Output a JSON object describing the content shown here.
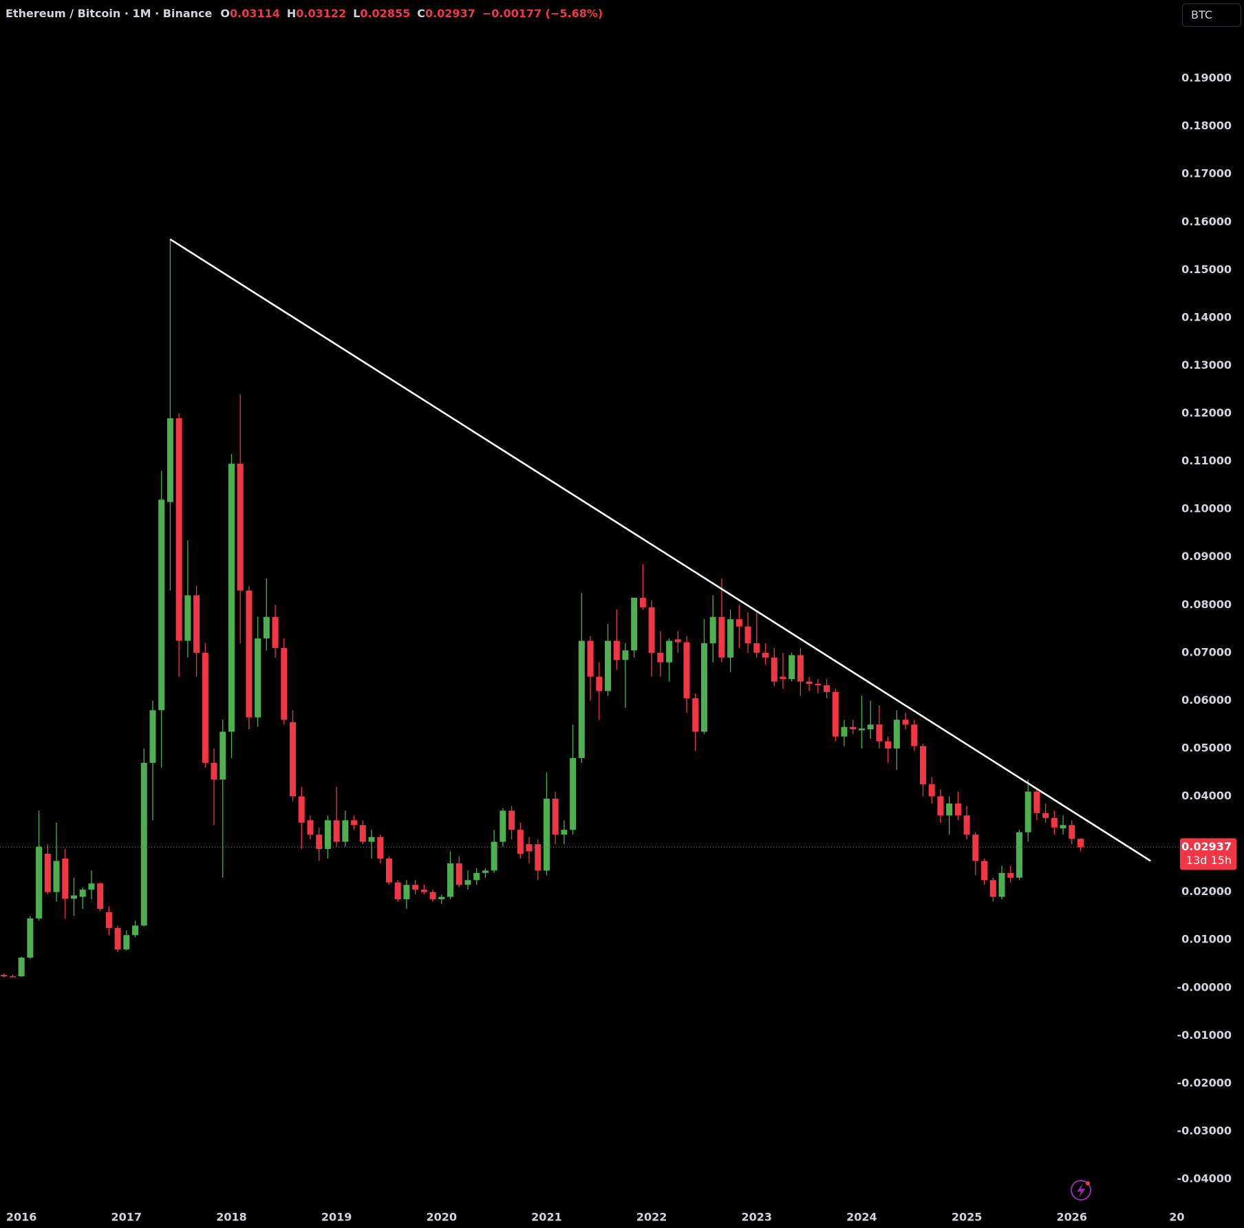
{
  "chart_data": {
    "type": "candlestick",
    "title": "Ethereum / Bitcoin · 1M · Binance",
    "ohlc_labels": [
      "O",
      "H",
      "L",
      "C"
    ],
    "change_label": "−0.00177 (−5.68%)",
    "currency": "BTC",
    "countdown": "13d 15h",
    "up_color": "#4caf50",
    "down_color": "#f23645",
    "trendline_color": "#ffffff",
    "grid": false,
    "x": [
      2015.8333,
      2015.9167,
      2016.0,
      2016.0833,
      2016.1667,
      2016.25,
      2016.3333,
      2016.4167,
      2016.5,
      2016.5833,
      2016.6667,
      2016.75,
      2016.8333,
      2016.9167,
      2017.0,
      2017.0833,
      2017.1667,
      2017.25,
      2017.3333,
      2017.4167,
      2017.5,
      2017.5833,
      2017.6667,
      2017.75,
      2017.8333,
      2017.9167,
      2018.0,
      2018.0833,
      2018.1667,
      2018.25,
      2018.3333,
      2018.4167,
      2018.5,
      2018.5833,
      2018.6667,
      2018.75,
      2018.8333,
      2018.9167,
      2019.0,
      2019.0833,
      2019.1667,
      2019.25,
      2019.3333,
      2019.4167,
      2019.5,
      2019.5833,
      2019.6667,
      2019.75,
      2019.8333,
      2019.9167,
      2020.0,
      2020.0833,
      2020.1667,
      2020.25,
      2020.3333,
      2020.4167,
      2020.5,
      2020.5833,
      2020.6667,
      2020.75,
      2020.8333,
      2020.9167,
      2021.0,
      2021.0833,
      2021.1667,
      2021.25,
      2021.3333,
      2021.4167,
      2021.5,
      2021.5833,
      2021.6667,
      2021.75,
      2021.8333,
      2021.9167,
      2022.0,
      2022.0833,
      2022.1667,
      2022.25,
      2022.3333,
      2022.4167,
      2022.5,
      2022.5833,
      2022.6667,
      2022.75,
      2022.8333,
      2022.9167,
      2023.0,
      2023.0833,
      2023.1667,
      2023.25,
      2023.3333,
      2023.4167,
      2023.5,
      2023.5833,
      2023.6667,
      2023.75,
      2023.8333,
      2023.9167,
      2024.0,
      2024.0833,
      2024.1667,
      2024.25,
      2024.3333,
      2024.4167,
      2024.5,
      2024.5833,
      2024.6667,
      2024.75,
      2024.8333,
      2024.9167,
      2025.0,
      2025.0833,
      2025.1667,
      2025.25,
      2025.3333,
      2025.4167,
      2025.5,
      2025.5833,
      2025.6667,
      2025.75,
      2025.8333,
      2025.9167,
      2026.0,
      2026.0833
    ],
    "open": [
      0.0027,
      0.0024,
      0.0024,
      0.0063,
      0.0145,
      0.028,
      0.02,
      0.027,
      0.0186,
      0.019,
      0.0205,
      0.0218,
      0.0158,
      0.0125,
      0.008,
      0.011,
      0.013,
      0.047,
      0.058,
      0.1015,
      0.119,
      0.0725,
      0.082,
      0.07,
      0.047,
      0.0435,
      0.0535,
      0.1095,
      0.083,
      0.0565,
      0.073,
      0.0775,
      0.071,
      0.0555,
      0.04,
      0.035,
      0.032,
      0.029,
      0.035,
      0.0305,
      0.035,
      0.034,
      0.0305,
      0.0315,
      0.027,
      0.022,
      0.0185,
      0.0215,
      0.0205,
      0.02,
      0.0185,
      0.019,
      0.026,
      0.0215,
      0.0225,
      0.024,
      0.0245,
      0.0305,
      0.037,
      0.033,
      0.03,
      0.03,
      0.0245,
      0.0395,
      0.032,
      0.033,
      0.048,
      0.0725,
      0.065,
      0.062,
      0.0725,
      0.0685,
      0.0705,
      0.0815,
      0.0795,
      0.07,
      0.068,
      0.0728,
      0.0722,
      0.0605,
      0.0535,
      0.072,
      0.0775,
      0.069,
      0.077,
      0.0755,
      0.072,
      0.07,
      0.069,
      0.065,
      0.0645,
      0.0695,
      0.064,
      0.0635,
      0.0632,
      0.0618,
      0.0525,
      0.0545,
      0.0538,
      0.054,
      0.055,
      0.0515,
      0.05,
      0.056,
      0.055,
      0.0505,
      0.0425,
      0.04,
      0.036,
      0.0385,
      0.036,
      0.032,
      0.0265,
      0.0225,
      0.019,
      0.024,
      0.023,
      0.0325,
      0.041,
      0.0365,
      0.0355,
      0.0333,
      0.034,
      0.03114
    ],
    "high": [
      0.003,
      0.0027,
      0.0065,
      0.015,
      0.037,
      0.03,
      0.0345,
      0.029,
      0.023,
      0.021,
      0.0245,
      0.022,
      0.017,
      0.013,
      0.012,
      0.014,
      0.05,
      0.06,
      0.108,
      0.1565,
      0.12,
      0.0935,
      0.084,
      0.072,
      0.05,
      0.056,
      0.1115,
      0.124,
      0.084,
      0.0775,
      0.0855,
      0.08,
      0.073,
      0.058,
      0.042,
      0.036,
      0.0335,
      0.036,
      0.042,
      0.037,
      0.036,
      0.035,
      0.033,
      0.032,
      0.0275,
      0.0225,
      0.0225,
      0.0225,
      0.0215,
      0.0205,
      0.0195,
      0.0285,
      0.0275,
      0.0245,
      0.025,
      0.025,
      0.033,
      0.0375,
      0.038,
      0.0345,
      0.0315,
      0.031,
      0.045,
      0.041,
      0.035,
      0.055,
      0.0825,
      0.0735,
      0.068,
      0.076,
      0.079,
      0.072,
      0.0815,
      0.0885,
      0.081,
      0.0745,
      0.073,
      0.0745,
      0.0735,
      0.0615,
      0.077,
      0.082,
      0.0855,
      0.079,
      0.08,
      0.0785,
      0.0785,
      0.072,
      0.071,
      0.07,
      0.07,
      0.071,
      0.065,
      0.0645,
      0.0645,
      0.0625,
      0.056,
      0.056,
      0.061,
      0.06,
      0.059,
      0.0525,
      0.058,
      0.0575,
      0.056,
      0.051,
      0.044,
      0.0415,
      0.04,
      0.041,
      0.038,
      0.0325,
      0.027,
      0.023,
      0.0255,
      0.0255,
      0.033,
      0.0435,
      0.0415,
      0.0385,
      0.037,
      0.036,
      0.035,
      0.03122
    ],
    "low": [
      0.0022,
      0.0022,
      0.0023,
      0.006,
      0.014,
      0.0195,
      0.018,
      0.0145,
      0.015,
      0.0165,
      0.0185,
      0.016,
      0.011,
      0.0075,
      0.0078,
      0.0105,
      0.0128,
      0.035,
      0.046,
      0.083,
      0.065,
      0.069,
      0.065,
      0.046,
      0.034,
      0.023,
      0.048,
      0.072,
      0.054,
      0.0545,
      0.0705,
      0.069,
      0.055,
      0.039,
      0.029,
      0.031,
      0.0265,
      0.027,
      0.0295,
      0.0295,
      0.033,
      0.03,
      0.027,
      0.026,
      0.0215,
      0.018,
      0.0165,
      0.0195,
      0.0195,
      0.018,
      0.0175,
      0.0185,
      0.021,
      0.0205,
      0.0215,
      0.023,
      0.024,
      0.0295,
      0.031,
      0.027,
      0.026,
      0.0225,
      0.0235,
      0.03,
      0.03,
      0.032,
      0.047,
      0.06,
      0.056,
      0.061,
      0.0665,
      0.0585,
      0.069,
      0.079,
      0.065,
      0.065,
      0.064,
      0.07,
      0.0575,
      0.0495,
      0.053,
      0.068,
      0.068,
      0.066,
      0.071,
      0.07,
      0.069,
      0.0675,
      0.063,
      0.0625,
      0.064,
      0.061,
      0.062,
      0.0615,
      0.0605,
      0.0515,
      0.0505,
      0.053,
      0.05,
      0.052,
      0.05,
      0.047,
      0.0455,
      0.054,
      0.0495,
      0.04,
      0.0385,
      0.0345,
      0.032,
      0.035,
      0.031,
      0.0235,
      0.0215,
      0.018,
      0.0185,
      0.022,
      0.0225,
      0.0305,
      0.035,
      0.0345,
      0.032,
      0.032,
      0.03,
      0.02855
    ],
    "close": [
      0.0024,
      0.0024,
      0.0063,
      0.0145,
      0.0295,
      0.02,
      0.0265,
      0.0186,
      0.0193,
      0.0205,
      0.0218,
      0.0165,
      0.0125,
      0.008,
      0.011,
      0.013,
      0.047,
      0.058,
      0.102,
      0.119,
      0.0725,
      0.082,
      0.07,
      0.047,
      0.0435,
      0.0535,
      0.1095,
      0.083,
      0.0565,
      0.073,
      0.0775,
      0.071,
      0.056,
      0.04,
      0.0345,
      0.032,
      0.029,
      0.035,
      0.0305,
      0.035,
      0.034,
      0.0305,
      0.0315,
      0.027,
      0.022,
      0.0185,
      0.0215,
      0.0205,
      0.02,
      0.0185,
      0.019,
      0.026,
      0.0215,
      0.0225,
      0.024,
      0.0245,
      0.0305,
      0.037,
      0.033,
      0.028,
      0.0285,
      0.0245,
      0.0395,
      0.032,
      0.033,
      0.048,
      0.0725,
      0.065,
      0.062,
      0.0725,
      0.0685,
      0.0705,
      0.0815,
      0.0795,
      0.07,
      0.068,
      0.0725,
      0.0722,
      0.0605,
      0.0535,
      0.072,
      0.0775,
      0.069,
      0.077,
      0.0755,
      0.072,
      0.07,
      0.069,
      0.064,
      0.0645,
      0.0695,
      0.064,
      0.0635,
      0.0632,
      0.0618,
      0.0525,
      0.0545,
      0.054,
      0.0542,
      0.055,
      0.0515,
      0.05,
      0.056,
      0.055,
      0.0505,
      0.0425,
      0.04,
      0.036,
      0.0385,
      0.036,
      0.032,
      0.0265,
      0.0225,
      0.019,
      0.024,
      0.023,
      0.0325,
      0.041,
      0.0365,
      0.0355,
      0.0335,
      0.034,
      0.0311,
      0.02937
    ],
    "trendline": {
      "x": [
        2017.4167,
        2026.75
      ],
      "y": [
        0.1564,
        0.0265
      ]
    },
    "xlim": [
      2015.796,
      2027.03
    ],
    "ylim": [
      -0.0456,
      0.2064
    ],
    "xticks": [
      2016,
      2017,
      2018,
      2019,
      2020,
      2021,
      2022,
      2023,
      2024,
      2025,
      2026,
      {
        "value": 2027,
        "label": "20"
      }
    ],
    "yticks": [
      {
        "value": -0.04,
        "label": "-0.04000"
      },
      {
        "value": -0.03,
        "label": "-0.03000"
      },
      {
        "value": -0.02,
        "label": "-0.02000"
      },
      {
        "value": -0.01,
        "label": "-0.01000"
      },
      {
        "value": 0,
        "label": "-0.00000"
      },
      {
        "value": 0.01,
        "label": "0.01000"
      },
      {
        "value": 0.02,
        "label": "0.02000"
      },
      {
        "value": 0.03,
        "label": "0.03000"
      },
      {
        "value": 0.04,
        "label": "0.04000"
      },
      {
        "value": 0.05,
        "label": "0.05000"
      },
      {
        "value": 0.06,
        "label": "0.06000"
      },
      {
        "value": 0.07,
        "label": "0.07000"
      },
      {
        "value": 0.08,
        "label": "0.08000"
      },
      {
        "value": 0.09,
        "label": "0.09000"
      },
      {
        "value": 0.1,
        "label": "0.10000"
      },
      {
        "value": 0.11,
        "label": "0.11000"
      },
      {
        "value": 0.12,
        "label": "0.12000"
      },
      {
        "value": 0.13,
        "label": "0.13000"
      },
      {
        "value": 0.14,
        "label": "0.14000"
      },
      {
        "value": 0.15,
        "label": "0.15000"
      },
      {
        "value": 0.16,
        "label": "0.16000"
      },
      {
        "value": 0.17,
        "label": "0.17000"
      },
      {
        "value": 0.18,
        "label": "0.18000"
      },
      {
        "value": 0.19,
        "label": "0.19000"
      }
    ]
  }
}
